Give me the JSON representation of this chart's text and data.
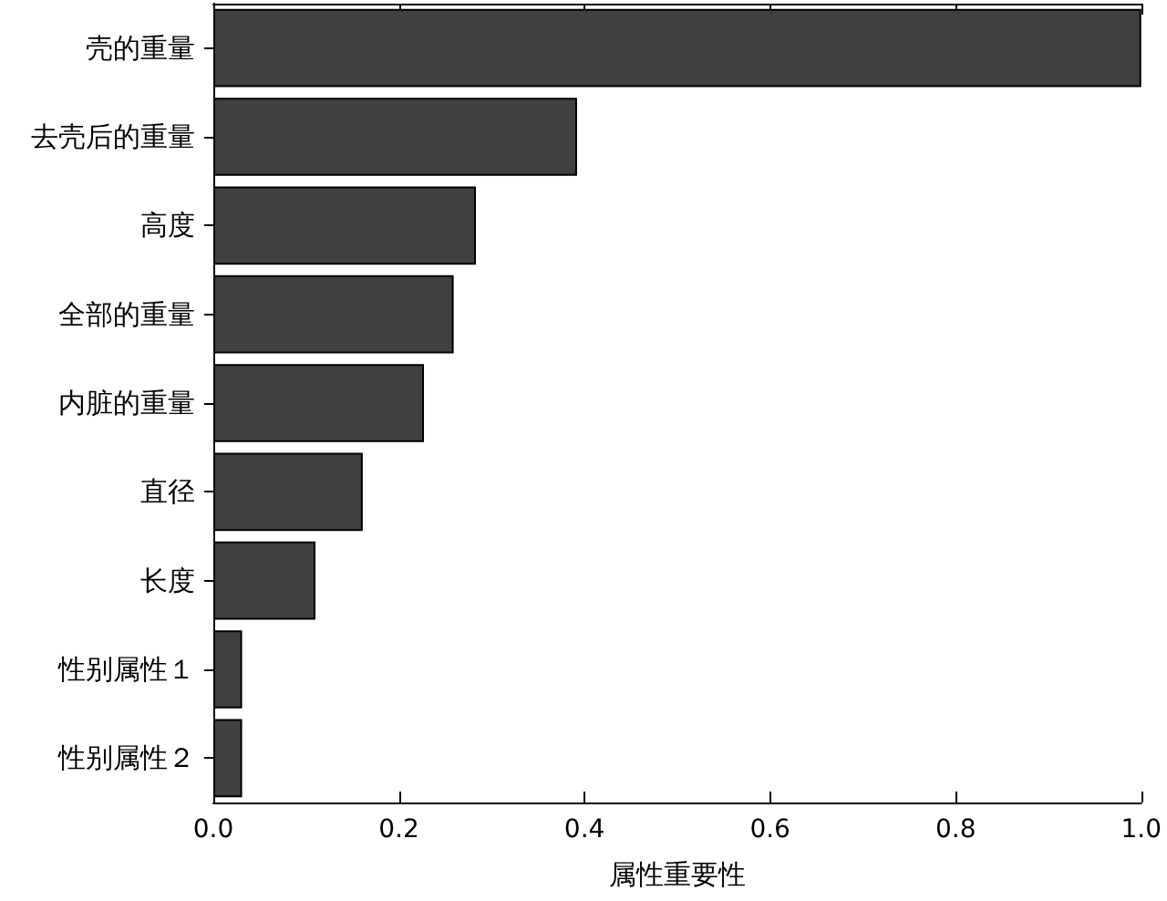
{
  "chart_data": {
    "type": "bar",
    "orientation": "horizontal",
    "xlabel": "属性重要性",
    "categories": [
      "壳的重量",
      "去壳后的重量",
      "高度",
      "全部的重量",
      "内脏的重量",
      "直径",
      "长度",
      "性别属性１",
      "性别属性２"
    ],
    "values": [
      1.0,
      0.392,
      0.283,
      0.259,
      0.227,
      0.161,
      0.11,
      0.031,
      0.031
    ],
    "color": "#404040",
    "xlim": [
      0,
      1
    ],
    "xticks": [
      {
        "value": 0,
        "label": "0.0"
      },
      {
        "value": 0.2,
        "label": "0.2"
      },
      {
        "value": 0.4,
        "label": "0.4"
      },
      {
        "value": 0.6,
        "label": "0.6"
      },
      {
        "value": 0.8,
        "label": "0.8"
      },
      {
        "value": 1,
        "label": "1.0"
      }
    ],
    "grid": false
  }
}
